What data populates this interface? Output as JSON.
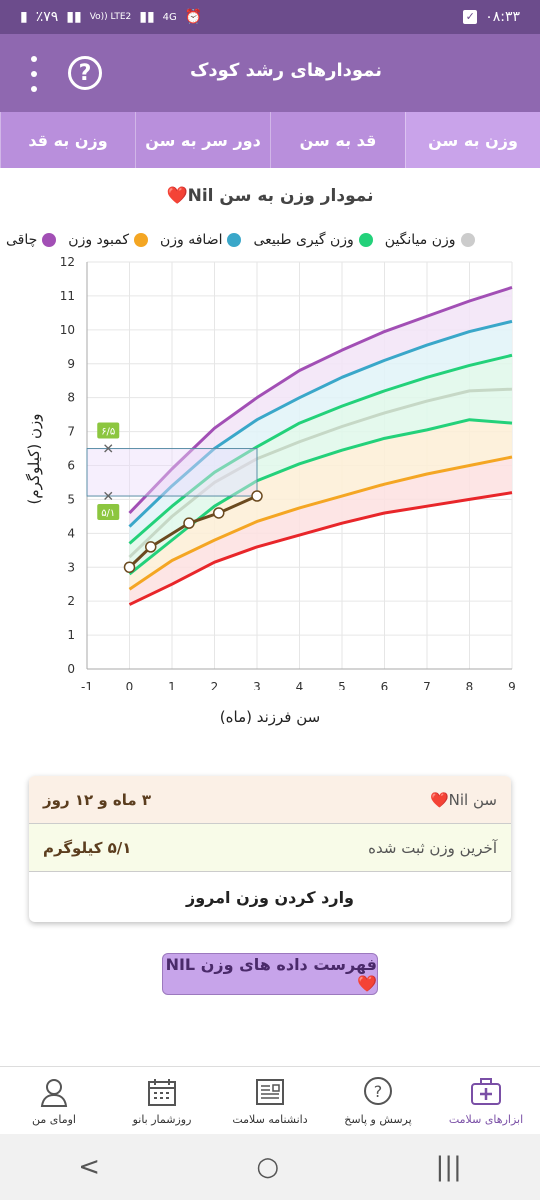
{
  "status_bar": {
    "time": "۰۸:۳۳",
    "battery": "٪۷۹",
    "network": "4G",
    "volte": "Vo)) LTE2"
  },
  "app_bar": {
    "title": "نمودارهای رشد کودک",
    "help_icon": "question-circle-icon",
    "menu_icon": "more-vert-icon"
  },
  "tabs": [
    {
      "label": "وزن به سن",
      "active": true
    },
    {
      "label": "قد به سن",
      "active": false
    },
    {
      "label": "دور سر به سن",
      "active": false
    },
    {
      "label": "وزن به قد",
      "active": false
    }
  ],
  "chart": {
    "title": "نمودار وزن به سن Nil❤️",
    "ylabel": "وزن (کیلوگرم)",
    "xlabel": "سن فرزند (ماه)",
    "legend": [
      {
        "label": "چاقی",
        "color": "#a24fb5"
      },
      {
        "label": "کمبود وزن",
        "color": "#f4a623"
      },
      {
        "label": "اضافه وزن",
        "color": "#3aa7c9"
      },
      {
        "label": "وزن گیری طبیعی",
        "color": "#23d17a"
      },
      {
        "label": "وزن میانگین",
        "color": "#cccccc"
      }
    ],
    "marker_high": "۶/۵",
    "marker_low": "۵/۱"
  },
  "chart_data": {
    "type": "line",
    "x": [
      0,
      1,
      2,
      3,
      4,
      5,
      6,
      7,
      8,
      9
    ],
    "xlim": [
      -1,
      9
    ],
    "ylim": [
      0,
      12
    ],
    "xticks": [
      -1,
      0,
      1,
      2,
      3,
      4,
      5,
      6,
      7,
      8,
      9
    ],
    "yticks": [
      0,
      1,
      2,
      3,
      4,
      5,
      6,
      7,
      8,
      9,
      10,
      11,
      12
    ],
    "series": [
      {
        "name": "چاقی",
        "color": "#a24fb5",
        "values": [
          4.6,
          5.9,
          7.1,
          8.0,
          8.8,
          9.4,
          9.95,
          10.4,
          10.85,
          11.25
        ]
      },
      {
        "name": "اضافه وزن",
        "color": "#3aa7c9",
        "values": [
          4.2,
          5.4,
          6.5,
          7.35,
          8.0,
          8.6,
          9.1,
          9.55,
          9.95,
          10.25
        ]
      },
      {
        "name": "وزن گیری طبیعی",
        "color": "#23d17a",
        "values": [
          3.7,
          4.8,
          5.8,
          6.55,
          7.25,
          7.75,
          8.2,
          8.6,
          8.95,
          9.25
        ]
      },
      {
        "name": "وزن میانگین",
        "color": "#c6d8c6",
        "values": [
          3.3,
          4.5,
          5.5,
          6.2,
          6.7,
          7.15,
          7.55,
          7.9,
          8.2,
          8.25
        ]
      },
      {
        "name": "",
        "color": "#23d17a",
        "values": [
          2.8,
          3.8,
          4.8,
          5.55,
          6.05,
          6.45,
          6.8,
          7.05,
          7.35,
          7.25
        ]
      },
      {
        "name": "کمبود وزن",
        "color": "#f4a623",
        "values": [
          2.35,
          3.2,
          3.8,
          4.35,
          4.75,
          5.1,
          5.45,
          5.75,
          6.0,
          6.25
        ]
      },
      {
        "name": "",
        "color": "#e8262a",
        "values": [
          1.9,
          2.5,
          3.15,
          3.6,
          3.95,
          4.3,
          4.6,
          4.8,
          5.0,
          5.2
        ]
      }
    ],
    "child_points": [
      {
        "x": 0,
        "y": 3.0
      },
      {
        "x": 0.5,
        "y": 3.6
      },
      {
        "x": 1.4,
        "y": 4.3
      },
      {
        "x": 2.1,
        "y": 4.6
      },
      {
        "x": 3.0,
        "y": 5.1
      }
    ],
    "range_box": {
      "x_from": -1,
      "x_to": 3.0,
      "y_low": 5.1,
      "y_high": 6.5
    }
  },
  "info": {
    "age_label": "سن Nil❤️",
    "age_value": "۳ ماه و ۱۲ روز",
    "weight_label": "آخرین وزن ثبت شده",
    "weight_value": "۵/۱ کیلوگرم",
    "action_label": "وارد کردن وزن امروز"
  },
  "list_button": "فهرست داده های وزن NIL❤️",
  "bottom_nav": [
    {
      "label": "ابزارهای سلامت",
      "icon": "first-aid-kit-icon",
      "active": true
    },
    {
      "label": "پرسش و پاسخ",
      "icon": "question-bubble-icon",
      "active": false
    },
    {
      "label": "دانشنامه سلامت",
      "icon": "newspaper-icon",
      "active": false
    },
    {
      "label": "روزشمار بانو",
      "icon": "calendar-icon",
      "active": false
    },
    {
      "label": "اومای من",
      "icon": "user-avatar-icon",
      "active": false
    }
  ],
  "system_nav": {
    "recent": "|||",
    "home": "○",
    "back": "<"
  }
}
